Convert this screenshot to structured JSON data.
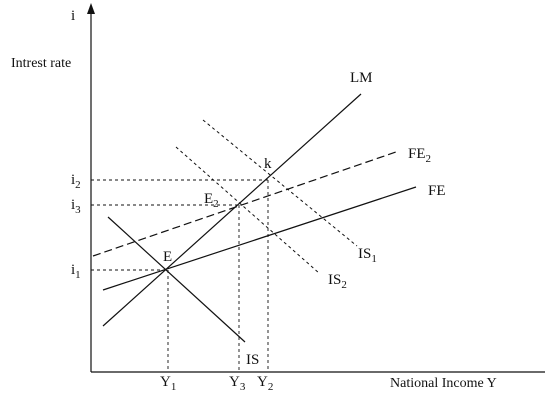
{
  "axes": {
    "y_symbol": "i",
    "y_label": "Intrest rate",
    "x_label": "National Income Y"
  },
  "curves": {
    "lm": {
      "label": "LM"
    },
    "fe": {
      "label": "FE"
    },
    "fe2": {
      "label": "FE",
      "subscript": "2"
    },
    "is": {
      "label": "IS"
    },
    "is1": {
      "label": "IS",
      "subscript": "1"
    },
    "is2": {
      "label": "IS",
      "subscript": "2"
    }
  },
  "points": {
    "e": {
      "label": "E"
    },
    "e2": {
      "label": "E",
      "subscript": "2"
    },
    "k": {
      "label": "k"
    }
  },
  "ticks_y": {
    "i1": {
      "label": "i",
      "subscript": "1"
    },
    "i2": {
      "label": "i",
      "subscript": "2"
    },
    "i3": {
      "label": "i",
      "subscript": "3"
    }
  },
  "ticks_x": {
    "y1": {
      "label": "Y",
      "subscript": "1"
    },
    "y2": {
      "label": "Y",
      "subscript": "2"
    },
    "y3": {
      "label": "Y",
      "subscript": "3"
    }
  },
  "colors": {
    "ink": "#111111"
  }
}
